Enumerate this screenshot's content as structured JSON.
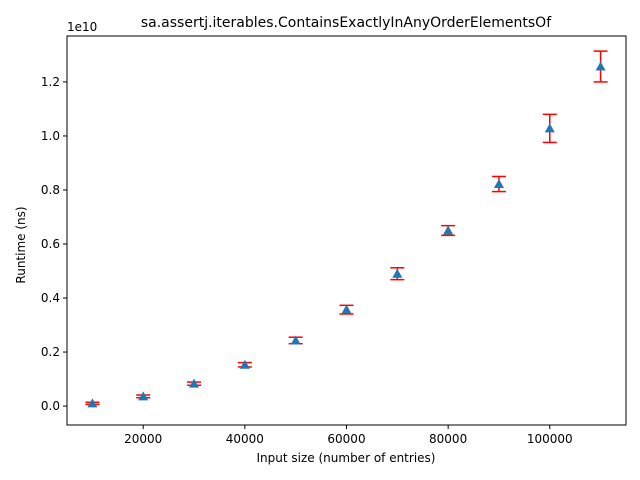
{
  "chart_data": {
    "type": "scatter",
    "title": "sa.assertj.iterables.ContainsExactlyInAnyOrderElementsOf",
    "xlabel": "Input size (number of entries)",
    "ylabel": "Runtime (ns)",
    "y_offset_label": "1e10",
    "xlim": [
      5000,
      115000
    ],
    "ylim": [
      -0.07,
      1.37
    ],
    "y_scale_note": "y values in units of 1e10 ns",
    "x_ticks": [
      20000,
      40000,
      60000,
      80000,
      100000
    ],
    "x_tick_labels": [
      "20000",
      "40000",
      "60000",
      "80000",
      "100000"
    ],
    "y_ticks": [
      0.0,
      0.2,
      0.4,
      0.6,
      0.8,
      1.0,
      1.2
    ],
    "y_tick_labels": [
      "0.0",
      "0.2",
      "0.4",
      "0.6",
      "0.8",
      "1.0",
      "1.2"
    ],
    "grid": false,
    "marker": "triangle",
    "colors": {
      "marker": "#1f77b4",
      "errorbar": "#ff0000",
      "axis": "#000000"
    },
    "series": [
      {
        "x": [
          10000,
          20000,
          30000,
          40000,
          50000,
          60000,
          70000,
          80000,
          90000,
          100000,
          110000
        ],
        "y": [
          0.01,
          0.036,
          0.083,
          0.153,
          0.243,
          0.357,
          0.49,
          0.65,
          0.822,
          1.028,
          1.257
        ],
        "err": [
          0.004,
          0.005,
          0.006,
          0.008,
          0.012,
          0.016,
          0.022,
          0.018,
          0.028,
          0.052,
          0.057
        ]
      }
    ]
  }
}
